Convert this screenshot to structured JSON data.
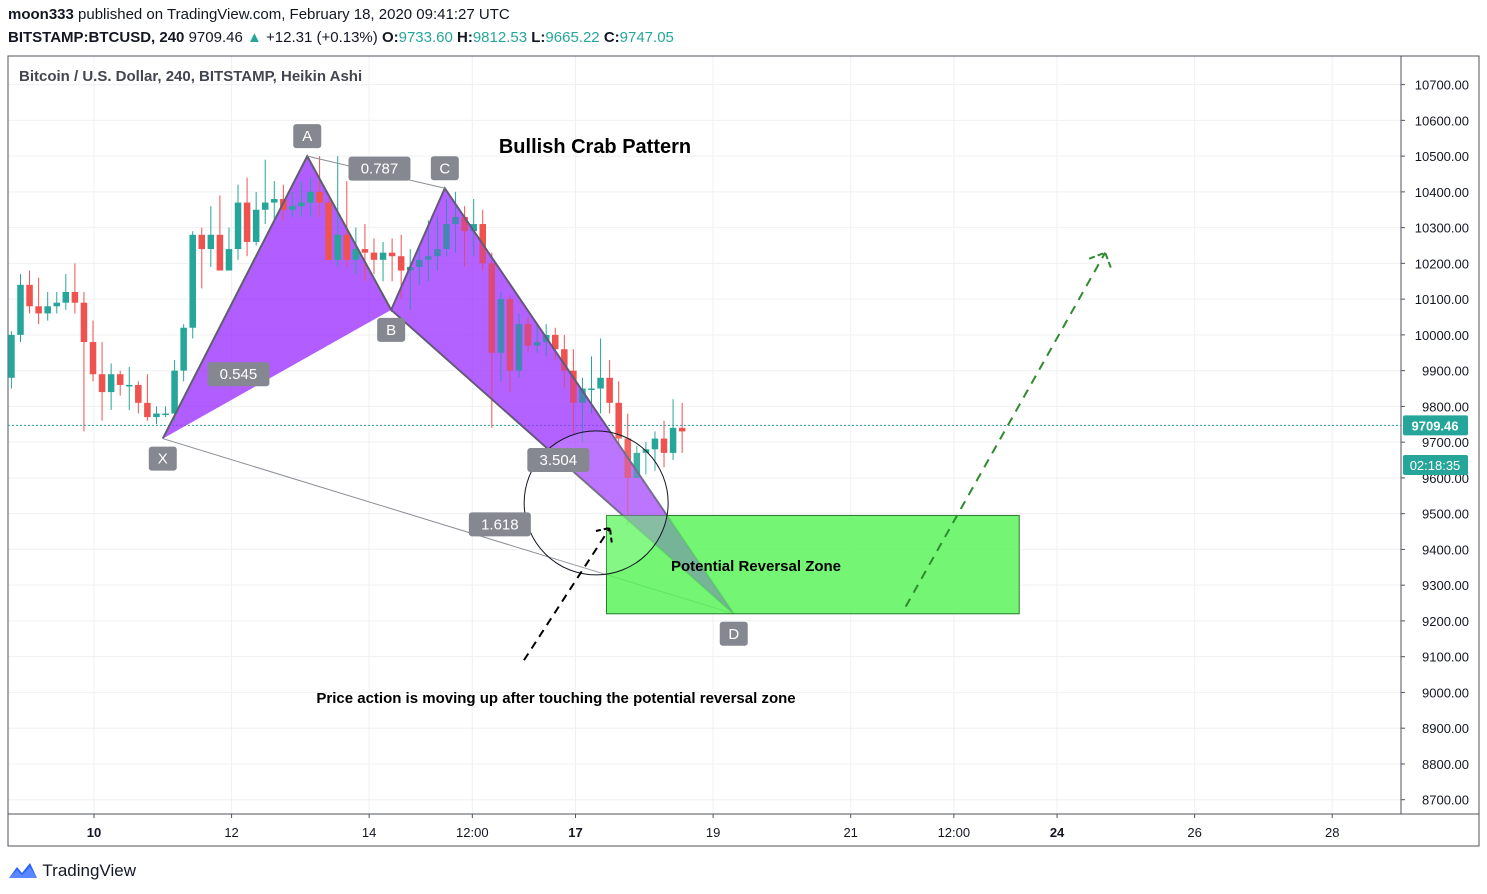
{
  "header": {
    "author": "moon333",
    "published_text": "published on TradingView.com, February 18, 2020 09:41:27 UTC",
    "symbol": "BITSTAMP:BTCUSD, 240",
    "price": "9709.46",
    "change": "+12.31 (+0.13%)",
    "open_label": "O:",
    "open_value": "9733.60",
    "high_label": "H:",
    "high_value": "9812.53",
    "low_label": "L:",
    "low_value": "9665.22",
    "close_label": "C:",
    "close_value": "9747.05"
  },
  "chart_legend": "Bitcoin / U.S. Dollar, 240, BITSTAMP, Heikin Ashi",
  "footer": {
    "brand": "TradingView",
    "icon": "tradingview-logo-icon"
  },
  "colors": {
    "up": "#26a69a",
    "down": "#ef5350",
    "pattern": "#9b30ff",
    "zone": "#5cf55c",
    "dashed_arrow_green": "#2e8b2e",
    "price_line": "#26a69a"
  },
  "price_label": "9709.46",
  "countdown_label": "02:18:35",
  "chart_data": {
    "type": "candlestick",
    "style": "Heikin Ashi",
    "title": "Bullish Crab Pattern",
    "y_axis": {
      "range": [
        8660,
        10780
      ],
      "ticks": [
        "10700.00",
        "10600.00",
        "10500.00",
        "10400.00",
        "10300.00",
        "10200.00",
        "10100.00",
        "10000.00",
        "9900.00",
        "9800.00",
        "9700.00",
        "9600.00",
        "9500.00",
        "9400.00",
        "9300.00",
        "9200.00",
        "9100.00",
        "9000.00",
        "8900.00",
        "8800.00",
        "8700.00"
      ],
      "tick_values": [
        10700,
        10600,
        10500,
        10400,
        10300,
        10200,
        10100,
        10000,
        9900,
        9800,
        9700,
        9600,
        9500,
        9400,
        9300,
        9200,
        9100,
        9000,
        8900,
        8800,
        8700
      ]
    },
    "x_axis": {
      "range_days": [
        8.75,
        29.0
      ],
      "ticks": [
        {
          "label": "10",
          "day": 10.0,
          "bold": true
        },
        {
          "label": "12",
          "day": 12.0,
          "bold": false
        },
        {
          "label": "14",
          "day": 14.0,
          "bold": false
        },
        {
          "label": "12:00",
          "day": 15.5,
          "bold": false
        },
        {
          "label": "17",
          "day": 17.0,
          "bold": true
        },
        {
          "label": "19",
          "day": 19.0,
          "bold": false
        },
        {
          "label": "21",
          "day": 21.0,
          "bold": false
        },
        {
          "label": "12:00",
          "day": 22.5,
          "bold": false
        },
        {
          "label": "24",
          "day": 24.0,
          "bold": true
        },
        {
          "label": "26",
          "day": 26.0,
          "bold": false
        },
        {
          "label": "28",
          "day": 28.0,
          "bold": false
        }
      ]
    },
    "last_price": 9747.05,
    "candles": [
      [
        9880,
        10000,
        9850,
        10010
      ],
      [
        10000,
        10140,
        9980,
        10170
      ],
      [
        10140,
        10080,
        10060,
        10180
      ],
      [
        10080,
        10060,
        10030,
        10160
      ],
      [
        10060,
        10080,
        10040,
        10120
      ],
      [
        10080,
        10090,
        10060,
        10120
      ],
      [
        10090,
        10120,
        10070,
        10170
      ],
      [
        10120,
        10090,
        10060,
        10200
      ],
      [
        10090,
        9980,
        9730,
        10120
      ],
      [
        9980,
        9890,
        9870,
        10040
      ],
      [
        9890,
        9840,
        9760,
        9980
      ],
      [
        9840,
        9890,
        9790,
        9920
      ],
      [
        9890,
        9860,
        9830,
        9900
      ],
      [
        9860,
        9860,
        9790,
        9910
      ],
      [
        9860,
        9810,
        9780,
        9870
      ],
      [
        9810,
        9770,
        9760,
        9890
      ],
      [
        9770,
        9780,
        9750,
        9800
      ],
      [
        9780,
        9780,
        9770,
        9800
      ],
      [
        9780,
        9900,
        9760,
        9930
      ],
      [
        9900,
        10020,
        9870,
        10030
      ],
      [
        10020,
        10280,
        9990,
        10290
      ],
      [
        10280,
        10240,
        10130,
        10300
      ],
      [
        10240,
        10280,
        10190,
        10360
      ],
      [
        10280,
        10180,
        10180,
        10390
      ],
      [
        10180,
        10240,
        10180,
        10300
      ],
      [
        10240,
        10370,
        10210,
        10420
      ],
      [
        10370,
        10260,
        10220,
        10440
      ],
      [
        10260,
        10350,
        10250,
        10400
      ],
      [
        10350,
        10370,
        10310,
        10490
      ],
      [
        10370,
        10380,
        10320,
        10430
      ],
      [
        10380,
        10350,
        10320,
        10420
      ],
      [
        10350,
        10360,
        10330,
        10400
      ],
      [
        10360,
        10370,
        10330,
        10430
      ],
      [
        10370,
        10400,
        10330,
        10440
      ],
      [
        10400,
        10370,
        10330,
        10500
      ],
      [
        10370,
        10210,
        10210,
        10380
      ],
      [
        10210,
        10280,
        10190,
        10500
      ],
      [
        10280,
        10210,
        10190,
        10430
      ],
      [
        10210,
        10240,
        10170,
        10300
      ],
      [
        10240,
        10230,
        10150,
        10310
      ],
      [
        10230,
        10210,
        10170,
        10270
      ],
      [
        10210,
        10230,
        10150,
        10260
      ],
      [
        10230,
        10220,
        10150,
        10270
      ],
      [
        10220,
        10180,
        10100,
        10280
      ],
      [
        10180,
        10190,
        10070,
        10240
      ],
      [
        10190,
        10210,
        10140,
        10250
      ],
      [
        10210,
        10220,
        10150,
        10320
      ],
      [
        10220,
        10240,
        10180,
        10330
      ],
      [
        10240,
        10310,
        10220,
        10380
      ],
      [
        10310,
        10330,
        10230,
        10400
      ],
      [
        10330,
        10290,
        10190,
        10360
      ],
      [
        10290,
        10310,
        10220,
        10380
      ],
      [
        10310,
        10200,
        10180,
        10350
      ],
      [
        10200,
        9950,
        9740,
        10230
      ],
      [
        9950,
        10100,
        9870,
        10120
      ],
      [
        10100,
        9900,
        9840,
        10110
      ],
      [
        9900,
        10030,
        9880,
        10060
      ],
      [
        10030,
        9970,
        9950,
        10050
      ],
      [
        9970,
        9980,
        9950,
        10030
      ],
      [
        9980,
        10000,
        9940,
        10030
      ],
      [
        10000,
        9960,
        9930,
        10020
      ],
      [
        9960,
        9900,
        9850,
        10000
      ],
      [
        9900,
        9810,
        9720,
        9960
      ],
      [
        9810,
        9850,
        9700,
        9880
      ],
      [
        9850,
        9850,
        9780,
        9940
      ],
      [
        9850,
        9880,
        9780,
        9990
      ],
      [
        9880,
        9810,
        9780,
        9930
      ],
      [
        9810,
        9710,
        9690,
        9870
      ],
      [
        9710,
        9600,
        9470,
        9780
      ],
      [
        9600,
        9670,
        9620,
        9690
      ],
      [
        9670,
        9680,
        9610,
        9700
      ],
      [
        9680,
        9710,
        9620,
        9730
      ],
      [
        9710,
        9670,
        9630,
        9760
      ],
      [
        9670,
        9740,
        9650,
        9820
      ],
      [
        9740,
        9730,
        9670,
        9810
      ]
    ],
    "pattern": {
      "name": "Bullish Crab Pattern",
      "points": [
        {
          "label": "X",
          "day": 11.0,
          "price": 9710
        },
        {
          "label": "A",
          "day": 13.1,
          "price": 10500
        },
        {
          "label": "B",
          "day": 14.32,
          "price": 10070
        },
        {
          "label": "C",
          "day": 15.1,
          "price": 10410
        },
        {
          "label": "D",
          "day": 19.3,
          "price": 9220
        }
      ],
      "ratios": [
        {
          "label": "0.545",
          "day": 12.1,
          "price": 9890
        },
        {
          "label": "0.787",
          "day": 14.15,
          "price": 10465
        },
        {
          "label": "3.504",
          "day": 16.75,
          "price": 9650
        },
        {
          "label": "1.618",
          "day": 15.9,
          "price": 9470
        }
      ]
    },
    "zone": {
      "label": "Potential Reversal Zone",
      "day_start": 17.45,
      "day_end": 23.45,
      "price_low": 9220,
      "price_high": 9495
    },
    "annotations": [
      {
        "text": "Price action is moving up after touching the potential reversal zone"
      }
    ],
    "projection": {
      "black_arrow": {
        "from": {
          "day": 16.25,
          "price": 9090
        },
        "to": {
          "day": 17.5,
          "price": 9460
        }
      },
      "green_arrow": {
        "from": {
          "day": 21.8,
          "price": 9240
        },
        "to": {
          "day": 24.7,
          "price": 10230
        }
      }
    },
    "grid": true
  }
}
